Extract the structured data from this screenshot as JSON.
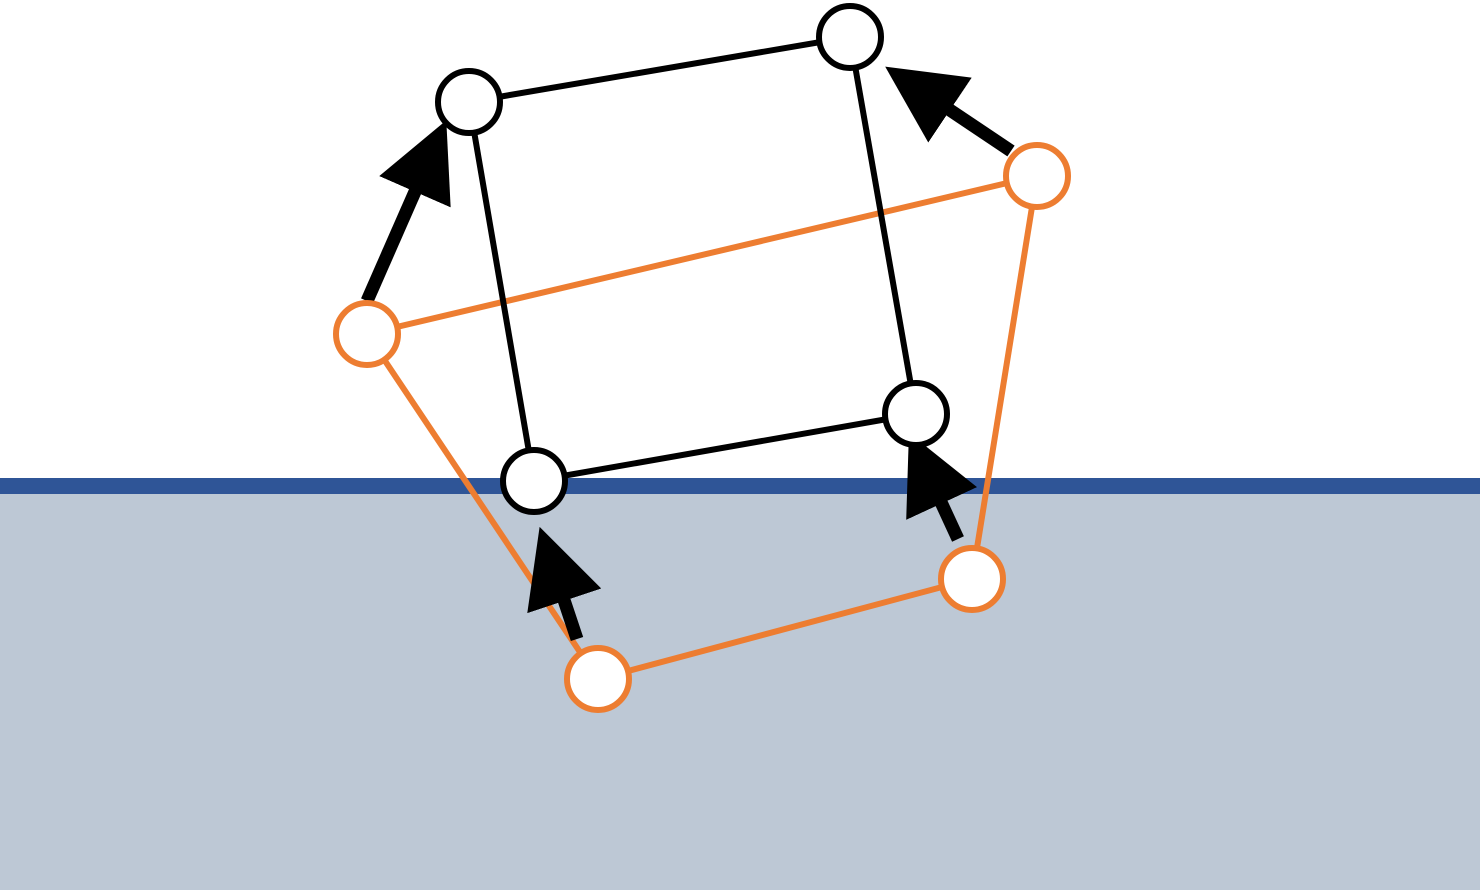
{
  "colors": {
    "background": "#ffffff",
    "ground_fill": "#bdc8d5",
    "ground_line": "#2f5597",
    "corrected_shape": "#000000",
    "penetrating_shape": "#ed7d31",
    "node_fill": "#ffffff",
    "arrow": "#000000"
  },
  "diagram": {
    "description_elements": [
      "ground-region",
      "ground-surface-line",
      "penetrating-quad",
      "corrected-quad",
      "correction-arrows"
    ]
  }
}
